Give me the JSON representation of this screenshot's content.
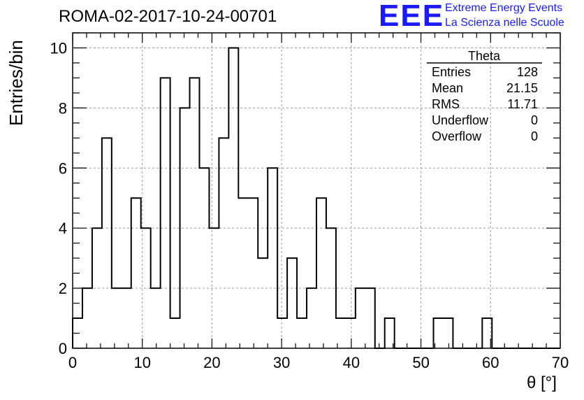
{
  "title": "ROMA-02-2017-10-24-00701",
  "logo": {
    "mark": "EEE",
    "line1": "Extreme Energy Events",
    "line2": "La Scienza nelle Scuole",
    "color": "#1a1aff"
  },
  "stats": {
    "title": "Theta",
    "rows": [
      {
        "label": "Entries",
        "value": "128"
      },
      {
        "label": "Mean",
        "value": "21.15"
      },
      {
        "label": "RMS",
        "value": "11.71"
      },
      {
        "label": "Underflow",
        "value": "0"
      },
      {
        "label": "Overflow",
        "value": "0"
      }
    ]
  },
  "chart_data": {
    "type": "bar",
    "style": "step-histogram",
    "xlabel": "θ [°]",
    "ylabel": "Entries/bin",
    "xlim": [
      0,
      70
    ],
    "ylim": [
      0,
      10.5
    ],
    "xticks": [
      0,
      10,
      20,
      30,
      40,
      50,
      60,
      70
    ],
    "yticks": [
      0,
      2,
      4,
      6,
      8,
      10
    ],
    "grid": true,
    "bin_width": 1.4,
    "bin_low_edges": [
      0,
      1.4,
      2.8,
      4.2,
      5.6,
      7,
      8.4,
      9.8,
      11.2,
      12.6,
      14,
      15.4,
      16.8,
      18.2,
      19.6,
      21,
      22.4,
      23.8,
      25.2,
      26.6,
      28,
      29.4,
      30.8,
      32.2,
      33.6,
      35,
      36.4,
      37.8,
      39.2,
      40.6,
      42,
      43.4,
      44.8,
      46.2,
      47.6,
      49,
      50.4,
      51.8,
      53.2,
      54.6,
      56,
      57.4,
      58.8,
      60.2,
      61.6,
      63,
      64.4,
      65.8,
      67.2,
      68.6
    ],
    "values": [
      1,
      2,
      4,
      7,
      2,
      2,
      5,
      4,
      2,
      9,
      1,
      8,
      9,
      6,
      4,
      7,
      10,
      5,
      5,
      3,
      6,
      1,
      3,
      1,
      2,
      5,
      4,
      1,
      1,
      2,
      2,
      0,
      1,
      0,
      0,
      0,
      0,
      1,
      1,
      0,
      0,
      0,
      1,
      0,
      0,
      0,
      0,
      0,
      0,
      0
    ],
    "line_color": "#000000",
    "grid_color": "#9a9a9a"
  }
}
